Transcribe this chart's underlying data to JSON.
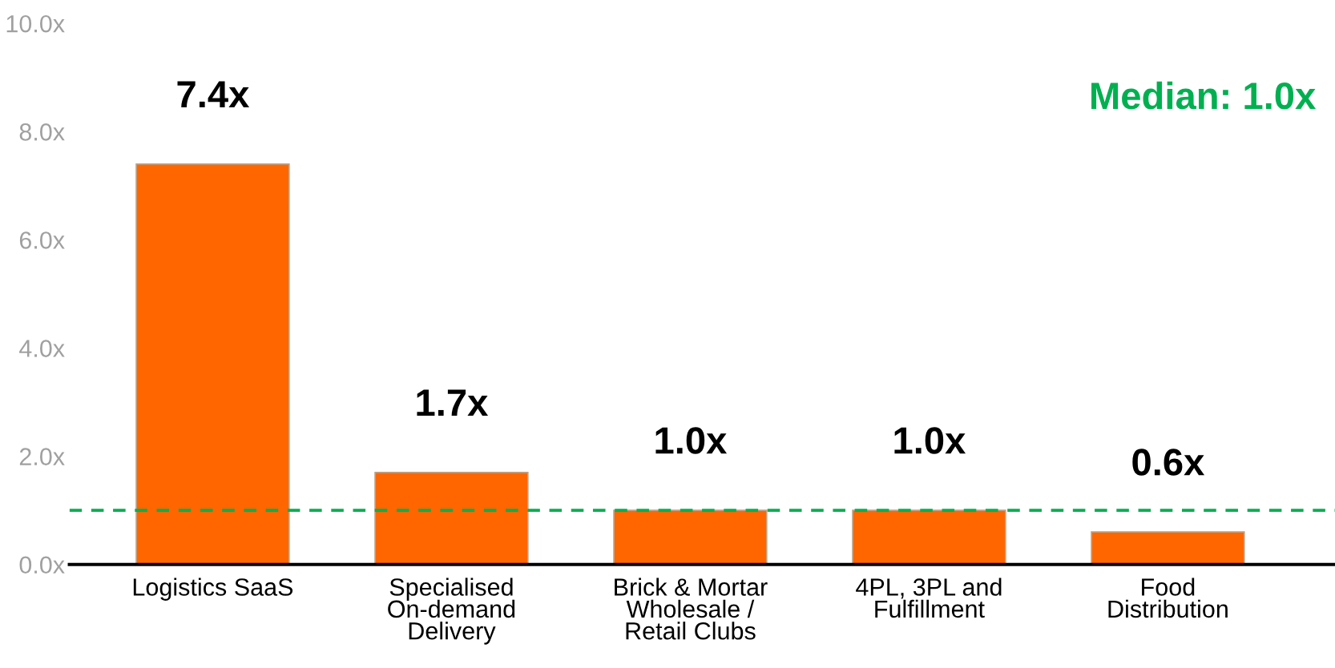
{
  "chart_data": {
    "type": "bar",
    "categories": [
      "Logistics SaaS",
      "Specialised\nOn-demand\nDelivery",
      "Brick & Mortar\nWholesale /\nRetail Clubs",
      "4PL, 3PL and\nFulfillment",
      "Food\nDistribution"
    ],
    "values": [
      7.4,
      1.7,
      1.0,
      1.0,
      0.6
    ],
    "value_labels": [
      "7.4x",
      "1.7x",
      "1.0x",
      "1.0x",
      "0.6x"
    ],
    "color": "#ff6600",
    "ylim": [
      0,
      10
    ],
    "yticks": [
      {
        "value": 0,
        "label": "0.0x"
      },
      {
        "value": 2,
        "label": "2.0x"
      },
      {
        "value": 4,
        "label": "4.0x"
      },
      {
        "value": 6,
        "label": "6.0x"
      },
      {
        "value": 8,
        "label": "8.0x"
      },
      {
        "value": 10,
        "label": "10.0x"
      }
    ],
    "ref_lines": [
      {
        "axis": "y",
        "value": 1.0,
        "label": "Median: 1.0x",
        "color": "#00b050",
        "line_style": "dashed"
      }
    ],
    "grid": false,
    "legend": false
  }
}
